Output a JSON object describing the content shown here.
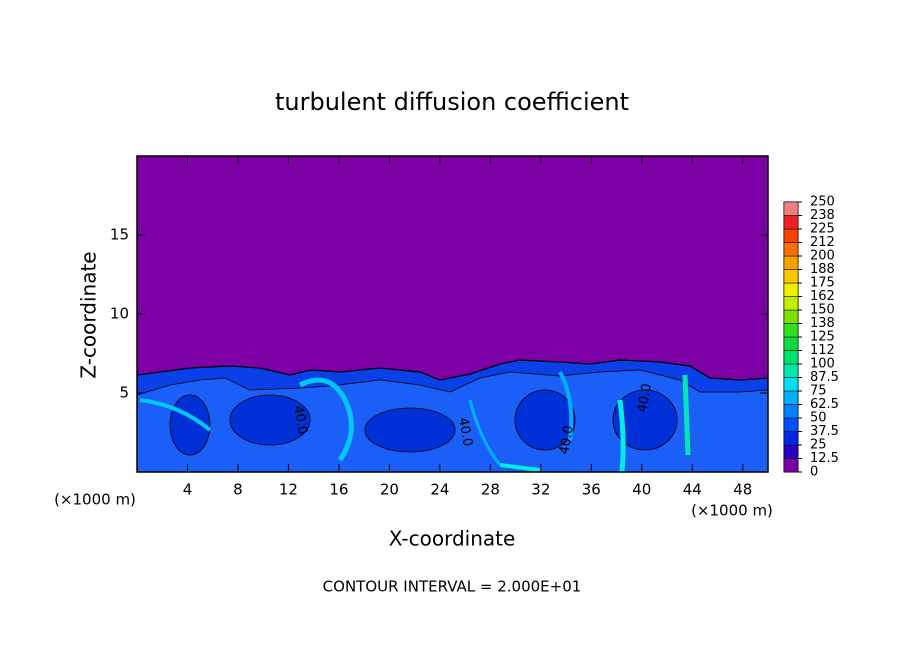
{
  "chart_data": {
    "type": "contour",
    "title": "turbulent diffusion coefficient",
    "xlabel": "X-coordinate",
    "ylabel": "Z-coordinate",
    "x_unit": "(×1000 m)",
    "footer": "CONTOUR INTERVAL = 2.000E+01",
    "xlim": [
      0,
      50
    ],
    "ylim": [
      0,
      20
    ],
    "xticks": [
      4,
      8,
      12,
      16,
      20,
      24,
      28,
      32,
      36,
      40,
      44,
      48
    ],
    "yticks": [
      5,
      10,
      15
    ],
    "background_color": "#7c00a6",
    "contour_labels": [
      "40.0",
      "40.0",
      "40.0",
      "40.0"
    ],
    "colorbar": {
      "ticks": [
        0,
        12.5,
        25,
        37.5,
        50,
        62.5,
        75,
        87.5,
        100,
        {
          "value": 112.5,
          "label": "112"
        },
        125,
        {
          "value": 137.5,
          "label": "138"
        },
        150,
        {
          "value": 162.5,
          "label": "162"
        },
        175,
        {
          "value": 187.5,
          "label": "188"
        },
        200,
        {
          "value": 212.5,
          "label": "212"
        },
        225,
        {
          "value": 237.5,
          "label": "238"
        },
        250
      ],
      "colors": [
        "#7c00a6",
        "#2a00c4",
        "#0028e0",
        "#0050ff",
        "#0080ff",
        "#00b0ff",
        "#00e0f0",
        "#00e8b0",
        "#00e070",
        "#10d840",
        "#30e020",
        "#80e000",
        "#c0f000",
        "#f0f000",
        "#f8c800",
        "#f8a000",
        "#f87000",
        "#f84000",
        "#f02020",
        "#f08080"
      ]
    }
  }
}
